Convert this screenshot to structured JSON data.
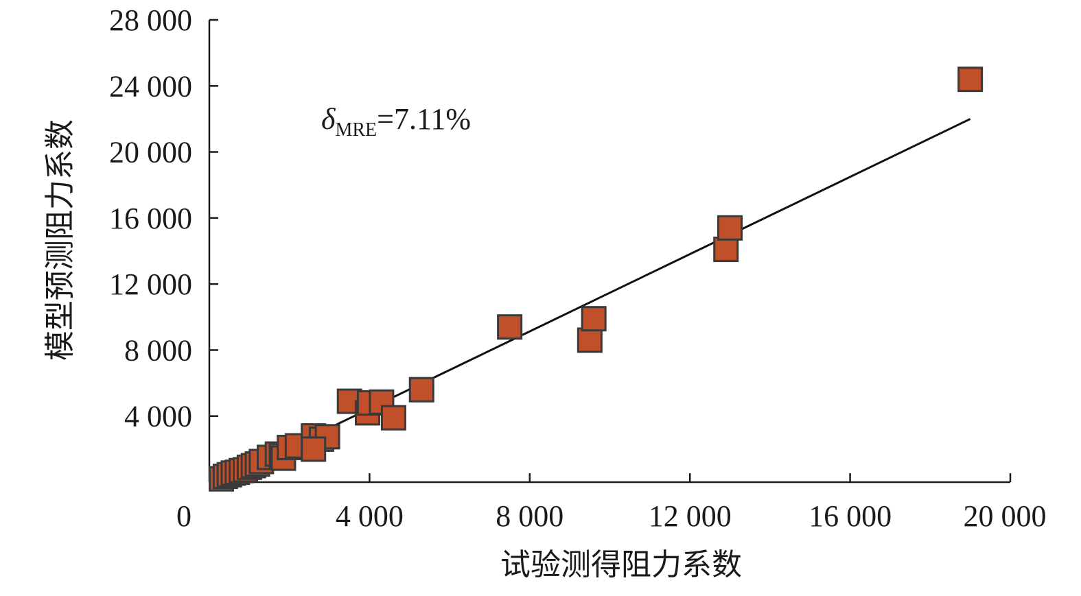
{
  "chart_data": {
    "type": "scatter",
    "title": "",
    "xlabel": "试验测得阻力系数",
    "ylabel": "模型预测阻力系数",
    "xlim": [
      0,
      20000
    ],
    "ylim": [
      0,
      28000
    ],
    "x_ticks": [
      0,
      4000,
      8000,
      12000,
      16000,
      20000
    ],
    "y_ticks": [
      4000,
      8000,
      12000,
      16000,
      20000,
      24000,
      28000
    ],
    "x_tick_labels": [
      "0",
      "4 000",
      "8 000",
      "12 000",
      "16 000",
      "20 000"
    ],
    "y_tick_labels": [
      "4 000",
      "8 000",
      "12 000",
      "16 000",
      "20 000",
      "24 000",
      "28 000"
    ],
    "annotation": {
      "symbol": "δ",
      "subscript": "MRE",
      "text": "=7.11%"
    },
    "marker_color": "#c0502a",
    "marker_edge_color": "#3a3a3a",
    "line_color": "#111111",
    "grid": false,
    "legend": "none",
    "points": [
      {
        "x": 300,
        "y": 200
      },
      {
        "x": 400,
        "y": 350
      },
      {
        "x": 500,
        "y": 450
      },
      {
        "x": 600,
        "y": 550
      },
      {
        "x": 700,
        "y": 600
      },
      {
        "x": 800,
        "y": 700
      },
      {
        "x": 900,
        "y": 750
      },
      {
        "x": 1000,
        "y": 900
      },
      {
        "x": 1100,
        "y": 1000
      },
      {
        "x": 1200,
        "y": 1100
      },
      {
        "x": 1300,
        "y": 1250
      },
      {
        "x": 1500,
        "y": 1500
      },
      {
        "x": 1700,
        "y": 1700
      },
      {
        "x": 1800,
        "y": 1600
      },
      {
        "x": 1850,
        "y": 1450
      },
      {
        "x": 2000,
        "y": 2100
      },
      {
        "x": 2200,
        "y": 2200
      },
      {
        "x": 2600,
        "y": 2800
      },
      {
        "x": 2800,
        "y": 2600
      },
      {
        "x": 2950,
        "y": 2750
      },
      {
        "x": 2600,
        "y": 2000
      },
      {
        "x": 3500,
        "y": 4900
      },
      {
        "x": 3950,
        "y": 4200
      },
      {
        "x": 4000,
        "y": 4800
      },
      {
        "x": 4300,
        "y": 4850
      },
      {
        "x": 4600,
        "y": 3900
      },
      {
        "x": 5300,
        "y": 5600
      },
      {
        "x": 7500,
        "y": 9400
      },
      {
        "x": 9500,
        "y": 8600
      },
      {
        "x": 9600,
        "y": 9900
      },
      {
        "x": 12900,
        "y": 14100
      },
      {
        "x": 13000,
        "y": 15400
      },
      {
        "x": 19000,
        "y": 24400
      }
    ],
    "fit_line": {
      "x": [
        300,
        19000
      ],
      "y": [
        0,
        22000
      ]
    }
  }
}
